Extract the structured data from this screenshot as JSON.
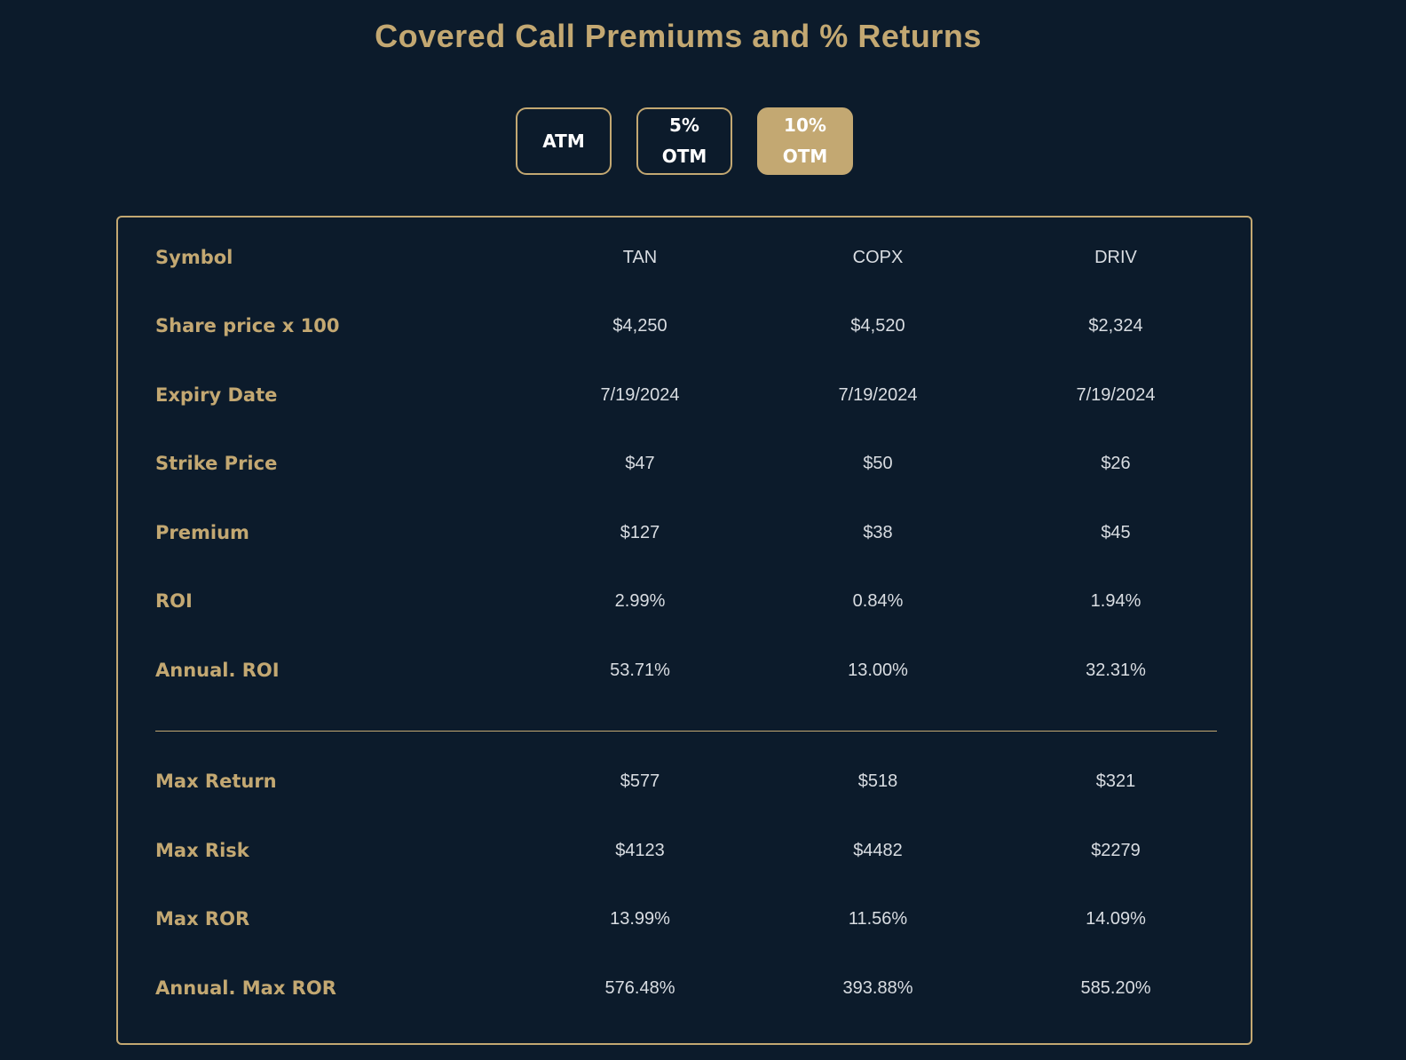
{
  "page": {
    "title": "Covered Call Premiums and % Returns"
  },
  "toggles": [
    {
      "label_line1": "ATM",
      "label_line2": "",
      "active": false
    },
    {
      "label_line1": "5%",
      "label_line2": "OTM",
      "active": false
    },
    {
      "label_line1": "10%",
      "label_line2": "OTM",
      "active": true
    }
  ],
  "table": {
    "rows_top": [
      {
        "label": "Symbol",
        "values": [
          "TAN",
          "COPX",
          "DRIV"
        ]
      },
      {
        "label": "Share price x 100",
        "values": [
          "$4,250",
          "$4,520",
          "$2,324"
        ]
      },
      {
        "label": "Expiry Date",
        "values": [
          "7/19/2024",
          "7/19/2024",
          "7/19/2024"
        ]
      },
      {
        "label": "Strike Price",
        "values": [
          "$47",
          "$50",
          "$26"
        ]
      },
      {
        "label": "Premium",
        "values": [
          "$127",
          "$38",
          "$45"
        ]
      },
      {
        "label": "ROI",
        "values": [
          "2.99%",
          "0.84%",
          "1.94%"
        ]
      },
      {
        "label": "Annual. ROI",
        "values": [
          "53.71%",
          "13.00%",
          "32.31%"
        ]
      }
    ],
    "rows_bottom": [
      {
        "label": "Max Return",
        "values": [
          "$577",
          "$518",
          "$321"
        ]
      },
      {
        "label": "Max Risk",
        "values": [
          "$4123",
          "$4482",
          "$2279"
        ]
      },
      {
        "label": "Max ROR",
        "values": [
          "13.99%",
          "11.56%",
          "14.09%"
        ]
      },
      {
        "label": "Annual. Max ROR",
        "values": [
          "576.48%",
          "393.88%",
          "585.20%"
        ]
      }
    ]
  },
  "colors": {
    "background": "#0c1b2b",
    "accent_gold": "#c3a872",
    "value_text": "#d9dde2"
  }
}
